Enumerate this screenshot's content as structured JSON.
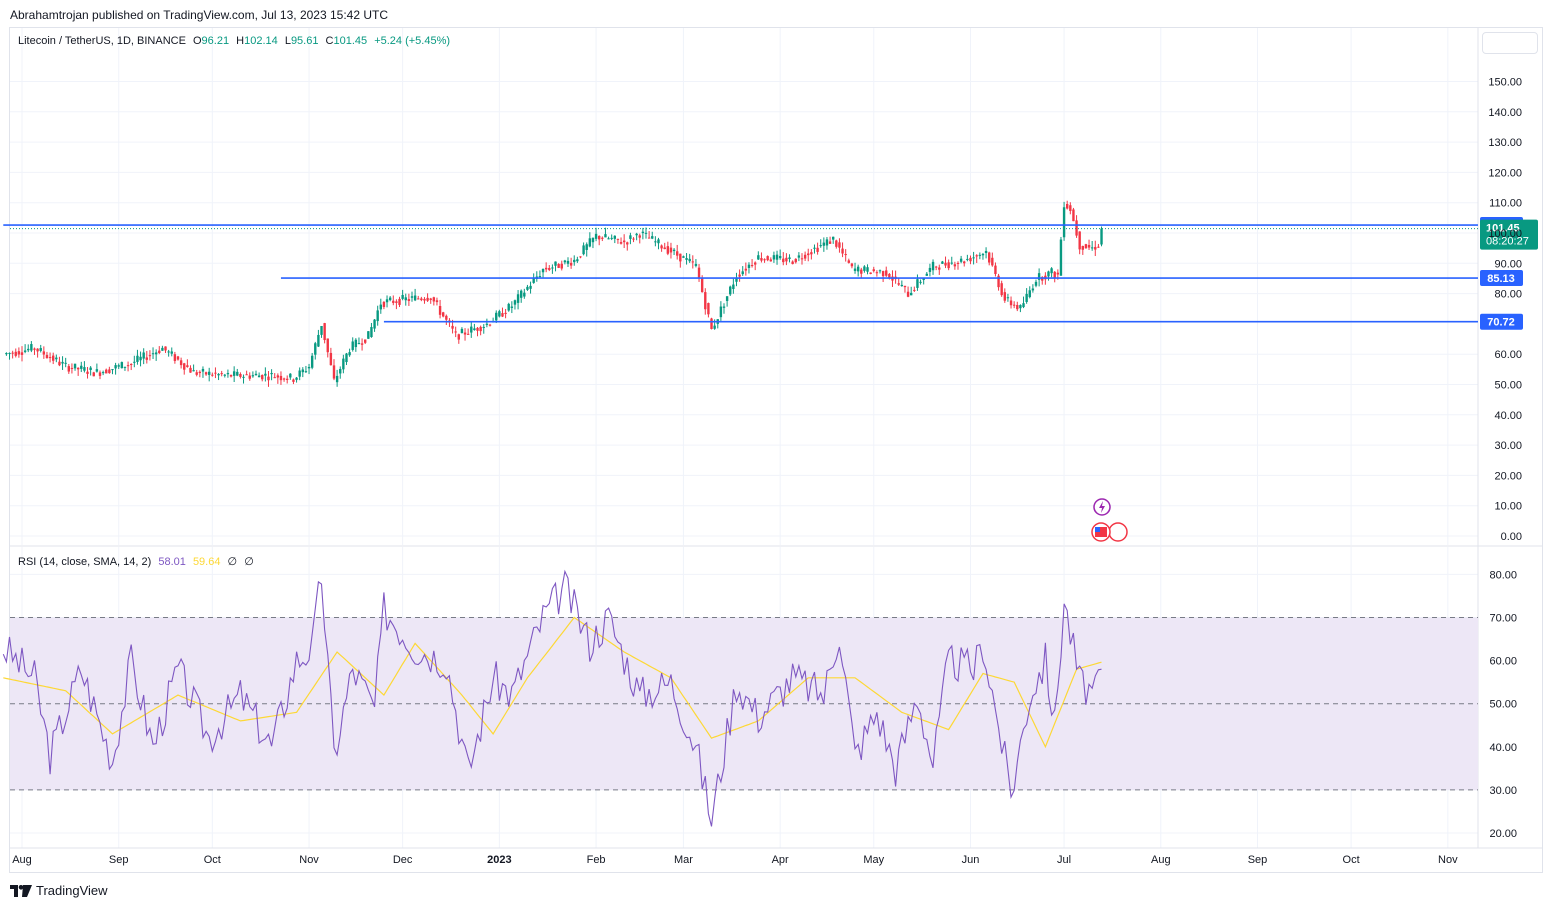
{
  "header": {
    "publisher": "Abrahamtrojan published on TradingView.com, Jul 13, 2023 15:42 UTC"
  },
  "price_legend": {
    "symbol": "Litecoin / TetherUS, 1D, BINANCE",
    "o_label": "O",
    "o": "96.21",
    "h_label": "H",
    "h": "102.14",
    "l_label": "L",
    "l": "95.61",
    "c_label": "C",
    "c": "101.45",
    "chg": "+5.24 (+5.45%)"
  },
  "rsi_legend": {
    "label": "RSI (14, close, SMA, 14, 2)",
    "rsi": "58.01",
    "sma": "59.64",
    "v1": "∅",
    "v2": "∅"
  },
  "footer": {
    "brand": "TradingView"
  },
  "colors": {
    "up": "#089981",
    "down": "#f23645",
    "level": "#2962ff",
    "rsi": "#7e57c2",
    "rsi_sma": "#fdd835",
    "rsi_band": "#ede7f6"
  },
  "chart_data": [
    {
      "type": "candlestick",
      "title": "Litecoin / TetherUS, 1D, BINANCE",
      "ylim": [
        0,
        160
      ],
      "y_ticks": [
        "150.00",
        "140.00",
        "130.00",
        "120.00",
        "110.00",
        "100.00",
        "90.00",
        "80.00",
        "60.00",
        "50.00",
        "40.00",
        "30.00",
        "20.00",
        "10.00",
        "0.00"
      ],
      "x_ticks": [
        "Aug",
        "Sep",
        "Oct",
        "Nov",
        "Dec",
        "2023",
        "Feb",
        "Mar",
        "Apr",
        "May",
        "Jun",
        "Jul",
        "Aug",
        "Sep",
        "Oct",
        "Nov"
      ],
      "date_range": [
        "2022-07-26",
        "2023-07-13"
      ],
      "anchors": [
        [
          "2022-07-26",
          60
        ],
        [
          "2022-08-05",
          62
        ],
        [
          "2022-08-15",
          56
        ],
        [
          "2022-08-25",
          54
        ],
        [
          "2022-09-05",
          57
        ],
        [
          "2022-09-15",
          62
        ],
        [
          "2022-09-25",
          54
        ],
        [
          "2022-10-05",
          53
        ],
        [
          "2022-10-20",
          53
        ],
        [
          "2022-10-27",
          52
        ],
        [
          "2022-11-01",
          56
        ],
        [
          "2022-11-05",
          70
        ],
        [
          "2022-11-09",
          51
        ],
        [
          "2022-11-14",
          62
        ],
        [
          "2022-11-20",
          66
        ],
        [
          "2022-11-24",
          77
        ],
        [
          "2022-12-01",
          78
        ],
        [
          "2022-12-10",
          79
        ],
        [
          "2022-12-18",
          66
        ],
        [
          "2022-12-28",
          70
        ],
        [
          "2023-01-05",
          76
        ],
        [
          "2023-01-15",
          88
        ],
        [
          "2023-01-25",
          91
        ],
        [
          "2023-02-01",
          99
        ],
        [
          "2023-02-10",
          97
        ],
        [
          "2023-02-15",
          100
        ],
        [
          "2023-02-25",
          94
        ],
        [
          "2023-03-05",
          89
        ],
        [
          "2023-03-10",
          68
        ],
        [
          "2023-03-18",
          86
        ],
        [
          "2023-03-25",
          92
        ],
        [
          "2023-04-05",
          91
        ],
        [
          "2023-04-18",
          98
        ],
        [
          "2023-04-24",
          88
        ],
        [
          "2023-05-05",
          87
        ],
        [
          "2023-05-12",
          80
        ],
        [
          "2023-05-20",
          89
        ],
        [
          "2023-05-30",
          91
        ],
        [
          "2023-06-06",
          94
        ],
        [
          "2023-06-12",
          78
        ],
        [
          "2023-06-17",
          75
        ],
        [
          "2023-06-22",
          85
        ],
        [
          "2023-06-27",
          87
        ],
        [
          "2023-06-29",
          86
        ],
        [
          "2023-07-01",
          110
        ],
        [
          "2023-07-03",
          108
        ],
        [
          "2023-07-06",
          96
        ],
        [
          "2023-07-10",
          95
        ],
        [
          "2023-07-12",
          96.21
        ],
        [
          "2023-07-13",
          101.45
        ]
      ],
      "last_candle": {
        "date": "2023-07-13",
        "open": 96.21,
        "high": 102.14,
        "low": 95.61,
        "close": 101.45
      },
      "levels": [
        {
          "value": 102.62,
          "label": "102.62",
          "from": "2022-07-26"
        },
        {
          "value": 85.13,
          "label": "85.13",
          "from": "2022-10-23"
        },
        {
          "value": 70.72,
          "label": "70.72",
          "from": "2022-11-25"
        }
      ],
      "last_price": {
        "value": 101.45,
        "label": "101.45",
        "countdown": "08:20:27"
      }
    },
    {
      "type": "line",
      "title": "RSI (14, close, SMA, 14, 2)",
      "ylim": [
        20,
        80
      ],
      "y_ticks": [
        "80.00",
        "70.00",
        "60.00",
        "50.00",
        "40.00",
        "30.00",
        "20.00"
      ],
      "band": [
        30,
        70
      ],
      "middle": 50,
      "series": [
        {
          "name": "RSI",
          "anchors": [
            [
              "2022-07-26",
              63
            ],
            [
              "2022-08-05",
              56
            ],
            [
              "2022-08-10",
              38
            ],
            [
              "2022-08-20",
              58
            ],
            [
              "2022-08-30",
              37
            ],
            [
              "2022-09-05",
              60
            ],
            [
              "2022-09-12",
              40
            ],
            [
              "2022-09-20",
              58
            ],
            [
              "2022-09-30",
              42
            ],
            [
              "2022-10-10",
              52
            ],
            [
              "2022-10-20",
              40
            ],
            [
              "2022-10-28",
              60
            ],
            [
              "2022-11-02",
              63
            ],
            [
              "2022-11-05",
              80
            ],
            [
              "2022-11-09",
              38
            ],
            [
              "2022-11-15",
              58
            ],
            [
              "2022-11-22",
              49
            ],
            [
              "2022-11-25",
              72
            ],
            [
              "2022-12-05",
              63
            ],
            [
              "2022-12-15",
              60
            ],
            [
              "2022-12-22",
              34
            ],
            [
              "2022-12-30",
              56
            ],
            [
              "2023-01-05",
              52
            ],
            [
              "2023-01-15",
              70
            ],
            [
              "2023-01-22",
              77
            ],
            [
              "2023-01-30",
              64
            ],
            [
              "2023-02-05",
              70
            ],
            [
              "2023-02-15",
              52
            ],
            [
              "2023-02-25",
              55
            ],
            [
              "2023-03-05",
              40
            ],
            [
              "2023-03-10",
              23
            ],
            [
              "2023-03-18",
              55
            ],
            [
              "2023-03-25",
              47
            ],
            [
              "2023-04-05",
              56
            ],
            [
              "2023-04-15",
              52
            ],
            [
              "2023-04-20",
              67
            ],
            [
              "2023-04-25",
              38
            ],
            [
              "2023-05-02",
              48
            ],
            [
              "2023-05-08",
              35
            ],
            [
              "2023-05-15",
              52
            ],
            [
              "2023-05-20",
              36
            ],
            [
              "2023-05-25",
              60
            ],
            [
              "2023-06-02",
              58
            ],
            [
              "2023-06-05",
              64
            ],
            [
              "2023-06-10",
              45
            ],
            [
              "2023-06-14",
              29
            ],
            [
              "2023-06-20",
              52
            ],
            [
              "2023-06-25",
              60
            ],
            [
              "2023-06-28",
              45
            ],
            [
              "2023-07-01",
              74
            ],
            [
              "2023-07-06",
              55
            ],
            [
              "2023-07-11",
              52
            ],
            [
              "2023-07-13",
              58.01
            ]
          ]
        },
        {
          "name": "SMA",
          "anchors": [
            [
              "2022-07-26",
              56
            ],
            [
              "2022-08-15",
              53
            ],
            [
              "2022-08-30",
              43
            ],
            [
              "2022-09-20",
              52
            ],
            [
              "2022-10-10",
              46
            ],
            [
              "2022-10-28",
              48
            ],
            [
              "2022-11-10",
              62
            ],
            [
              "2022-11-25",
              52
            ],
            [
              "2022-12-05",
              64
            ],
            [
              "2022-12-20",
              52
            ],
            [
              "2022-12-30",
              43
            ],
            [
              "2023-01-10",
              56
            ],
            [
              "2023-01-25",
              70
            ],
            [
              "2023-02-10",
              62
            ],
            [
              "2023-02-25",
              56
            ],
            [
              "2023-03-10",
              42
            ],
            [
              "2023-03-25",
              46
            ],
            [
              "2023-04-10",
              56
            ],
            [
              "2023-04-25",
              56
            ],
            [
              "2023-05-10",
              48
            ],
            [
              "2023-05-25",
              44
            ],
            [
              "2023-06-05",
              57
            ],
            [
              "2023-06-15",
              55
            ],
            [
              "2023-06-25",
              40
            ],
            [
              "2023-07-05",
              58
            ],
            [
              "2023-07-13",
              59.64
            ]
          ]
        }
      ]
    }
  ]
}
